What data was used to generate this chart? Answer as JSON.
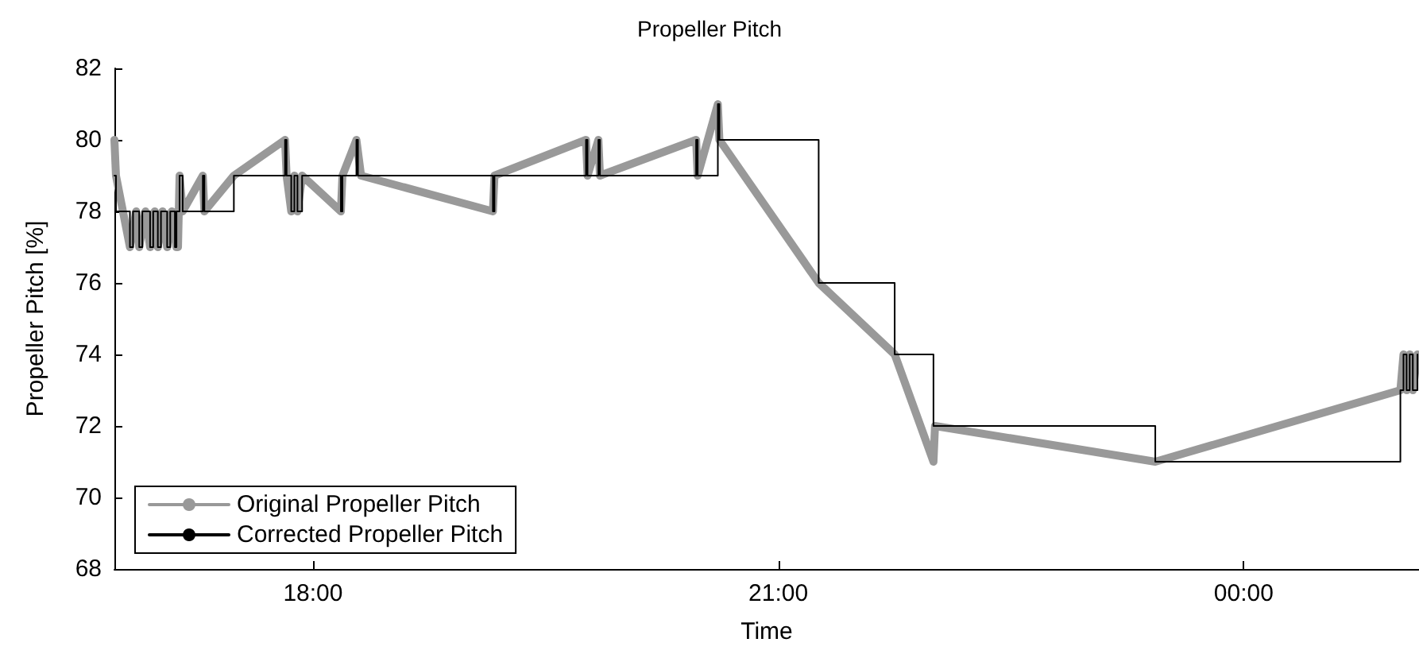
{
  "chart_data": {
    "type": "line",
    "title": "Propeller Pitch",
    "xlabel": "Time",
    "ylabel": "Propeller Pitch [%]",
    "xlim": [
      16.72,
      25.13
    ],
    "xticks": [
      {
        "value": 18,
        "label": "18:00"
      },
      {
        "value": 21,
        "label": "21:00"
      },
      {
        "value": 24,
        "label": "00:00"
      }
    ],
    "ylim": [
      68,
      82
    ],
    "yticks": [
      68,
      70,
      72,
      74,
      76,
      78,
      80,
      82
    ],
    "grid": false,
    "legend": "bottom left",
    "marker": "none",
    "line_style": "solid",
    "series": [
      {
        "name": "Original Propeller Pitch",
        "color": "#999999",
        "x": [
          16.72,
          16.73,
          16.82,
          16.86,
          16.88,
          16.92,
          16.95,
          16.98,
          17.0,
          17.03,
          17.06,
          17.09,
          17.12,
          17.13,
          17.14,
          17.16,
          17.29,
          17.3,
          17.49,
          17.82,
          17.83,
          17.86,
          17.88,
          17.9,
          17.93,
          18.18,
          18.19,
          18.28,
          18.31,
          19.16,
          19.17,
          19.76,
          19.77,
          19.84,
          19.85,
          20.47,
          20.48,
          20.61,
          20.62,
          21.26,
          21.75,
          22.0,
          22.01,
          23.43,
          25.01,
          25.03,
          25.05,
          25.07,
          25.09,
          25.12
        ],
        "values": [
          80,
          79,
          77,
          78,
          77,
          78,
          77,
          78,
          77,
          78,
          77,
          78,
          77,
          77,
          79,
          78,
          79,
          78,
          79,
          80,
          79,
          78,
          79,
          78,
          79,
          78,
          79,
          80,
          79,
          78,
          79,
          80,
          79,
          80,
          79,
          80,
          79,
          81,
          80,
          76,
          74,
          71,
          72,
          71,
          73,
          74,
          73,
          74,
          73,
          74
        ]
      },
      {
        "name": "Corrected Propeller Pitch",
        "type": "step",
        "color": "#000000",
        "x": [
          16.72,
          16.73,
          16.82,
          16.84,
          16.88,
          16.9,
          16.95,
          16.97,
          17.0,
          17.02,
          17.06,
          17.08,
          17.11,
          17.12,
          17.14,
          17.16,
          17.29,
          17.3,
          17.49,
          17.82,
          17.83,
          17.86,
          17.88,
          17.9,
          17.93,
          18.18,
          18.19,
          18.28,
          18.29,
          19.16,
          19.17,
          19.76,
          19.77,
          19.84,
          19.85,
          20.47,
          20.48,
          20.61,
          20.62,
          21.26,
          21.75,
          22.0,
          23.43,
          25.01,
          25.03,
          25.05,
          25.07,
          25.09,
          25.12
        ],
        "values": [
          79,
          78,
          77,
          78,
          77,
          78,
          77,
          78,
          77,
          78,
          77,
          78,
          77,
          78,
          79,
          78,
          79,
          78,
          79,
          80,
          79,
          78,
          79,
          78,
          79,
          78,
          79,
          80,
          79,
          78,
          79,
          80,
          79,
          80,
          79,
          80,
          79,
          81,
          80,
          76,
          74,
          72,
          71,
          73,
          74,
          73,
          74,
          73,
          74
        ]
      }
    ]
  }
}
